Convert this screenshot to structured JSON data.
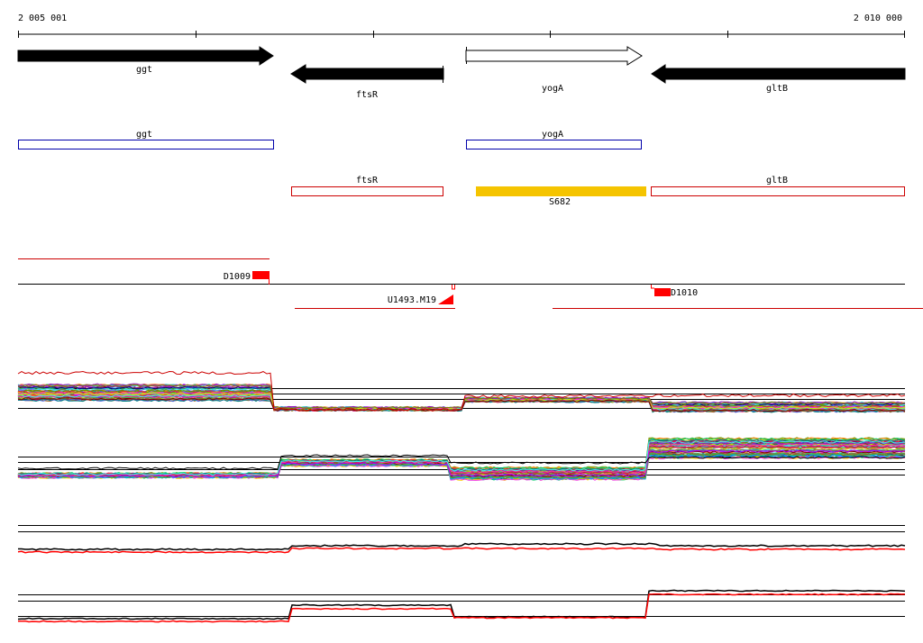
{
  "ruler": {
    "start_label": "2 005 001",
    "end_label": "2 010 000",
    "start": 2005001,
    "end": 2010000
  },
  "genes": [
    {
      "name": "ggt",
      "strand": "+",
      "fill": "#000000"
    },
    {
      "name": "ftsR",
      "strand": "-",
      "fill": "#000000"
    },
    {
      "name": "yogA",
      "strand": "+",
      "fill": "#ffffff"
    },
    {
      "name": "gltB",
      "strand": "-",
      "fill": "#000000"
    }
  ],
  "features": [
    {
      "name": "ggt",
      "color": "#0000aa"
    },
    {
      "name": "yogA",
      "color": "#0000aa"
    },
    {
      "name": "ftsR",
      "color": "#cc0000"
    },
    {
      "name": "gltB",
      "color": "#cc0000"
    },
    {
      "name": "S682",
      "color": "#f5c400"
    }
  ],
  "markers": [
    {
      "name": "D1009"
    },
    {
      "name": "U1493.M19"
    },
    {
      "name": "D1010"
    }
  ],
  "colors": {
    "sense": "#cc0000",
    "antisense": "#0000aa",
    "marker": "#ff0000",
    "promoter": "#f5c400",
    "summary": "#000000",
    "summary_alt": "#ff0000"
  }
}
